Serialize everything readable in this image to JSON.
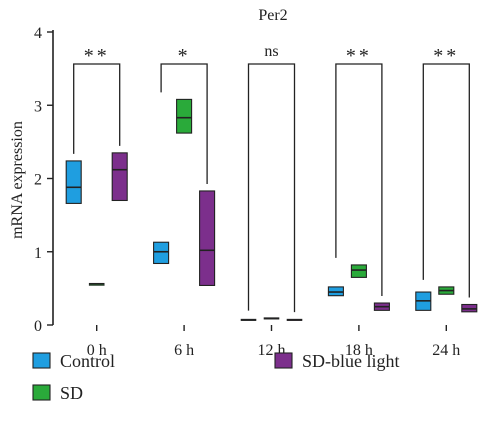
{
  "chart_data": {
    "type": "box",
    "title": "Per2",
    "ylabel": "mRNA expression",
    "xlabel": "",
    "ylim": [
      0,
      4
    ],
    "yticks": [
      "0",
      "1",
      "2",
      "3",
      "4"
    ],
    "categories": [
      "0 h",
      "6 h",
      "12 h",
      "18 h",
      "24 h"
    ],
    "series": [
      {
        "name": "Control",
        "color": "#1f9ee0",
        "boxes": [
          {
            "low": 1.66,
            "median": 1.88,
            "high": 2.24
          },
          {
            "low": 0.84,
            "median": 1.0,
            "high": 1.13
          },
          {
            "low": 0.06,
            "median": 0.07,
            "high": 0.08
          },
          {
            "low": 0.4,
            "median": 0.45,
            "high": 0.52
          },
          {
            "low": 0.2,
            "median": 0.33,
            "high": 0.45
          }
        ]
      },
      {
        "name": "SD",
        "color": "#2aaa3a",
        "boxes": [
          {
            "low": 0.54,
            "median": 0.56,
            "high": 0.57
          },
          {
            "low": 2.62,
            "median": 2.83,
            "high": 3.08
          },
          {
            "low": 0.08,
            "median": 0.09,
            "high": 0.1
          },
          {
            "low": 0.65,
            "median": 0.75,
            "high": 0.82
          },
          {
            "low": 0.42,
            "median": 0.47,
            "high": 0.52
          }
        ]
      },
      {
        "name": "SD-blue light",
        "color": "#7c2f8c",
        "boxes": [
          {
            "low": 1.7,
            "median": 2.12,
            "high": 2.35
          },
          {
            "low": 0.54,
            "median": 1.02,
            "high": 1.83
          },
          {
            "low": 0.06,
            "median": 0.07,
            "high": 0.08
          },
          {
            "low": 0.2,
            "median": 0.25,
            "high": 0.3
          },
          {
            "low": 0.18,
            "median": 0.22,
            "high": 0.28
          }
        ]
      }
    ],
    "significance": [
      {
        "category": "0 h",
        "label": "**"
      },
      {
        "category": "6 h",
        "label": "*"
      },
      {
        "category": "12 h",
        "label": "ns"
      },
      {
        "category": "18 h",
        "label": "**"
      },
      {
        "category": "24 h",
        "label": "**"
      }
    ],
    "grid": false,
    "legend_position": "bottom"
  }
}
